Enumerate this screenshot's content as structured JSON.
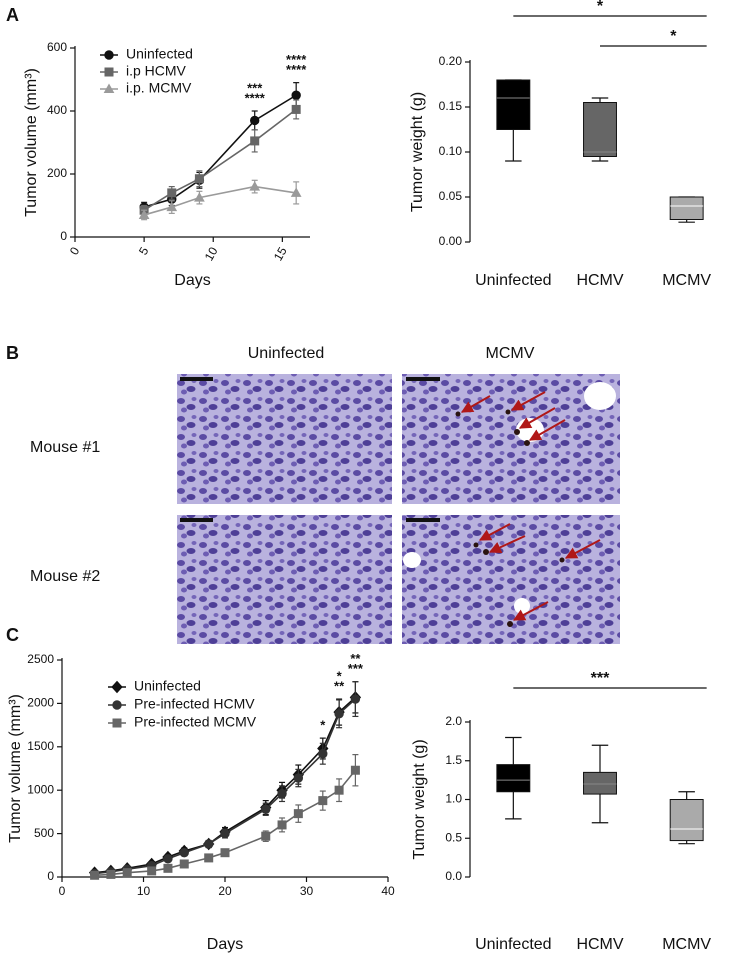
{
  "panels": [
    "A",
    "B",
    "C"
  ],
  "micrographs": {
    "columns": [
      "Uninfected",
      "MCMV"
    ],
    "rows": [
      "Mouse #1",
      "Mouse #2"
    ]
  },
  "chart_data": [
    {
      "type": "line",
      "xlabel": "Days",
      "ylabel": "Tumor volume (mm³)",
      "x": [
        5,
        7,
        9,
        13,
        16
      ],
      "xlim": [
        0,
        17
      ],
      "xticks": [
        0,
        5,
        10,
        15
      ],
      "ylim": [
        0,
        600
      ],
      "yticks": [
        0,
        200,
        400,
        600
      ],
      "series": [
        {
          "name": "Uninfected",
          "color": "#111111",
          "marker": "circle",
          "values": [
            95,
            120,
            180,
            370,
            450
          ],
          "errors": [
            15,
            20,
            25,
            30,
            40
          ]
        },
        {
          "name": "i.p HCMV",
          "color": "#666666",
          "marker": "square",
          "values": [
            85,
            140,
            185,
            305,
            405
          ],
          "errors": [
            15,
            20,
            25,
            35,
            30
          ]
        },
        {
          "name": "i.p. MCMV",
          "color": "#9a9a9a",
          "marker": "triangle",
          "values": [
            70,
            95,
            125,
            160,
            140
          ],
          "errors": [
            15,
            20,
            20,
            20,
            35
          ]
        }
      ],
      "annotations": [
        {
          "x": 13,
          "text": "****",
          "color": "#111111"
        },
        {
          "x": 13,
          "text": "***",
          "color": "#9a9a9a"
        },
        {
          "x": 16,
          "text": "****",
          "color": "#111111"
        },
        {
          "x": 16,
          "text": "****",
          "color": "#9a9a9a"
        }
      ]
    },
    {
      "type": "box",
      "ylabel": "Tumor weight (g)",
      "categories": [
        "Uninfected",
        "HCMV",
        "MCMV"
      ],
      "colors": [
        "#000000",
        "#666666",
        "#aaaaaa"
      ],
      "boxes": [
        {
          "min": 0.09,
          "q1": 0.125,
          "median": 0.16,
          "q3": 0.18,
          "max": 0.18
        },
        {
          "min": 0.09,
          "q1": 0.095,
          "median": 0.1,
          "q3": 0.155,
          "max": 0.16
        },
        {
          "min": 0.022,
          "q1": 0.025,
          "median": 0.04,
          "q3": 0.05,
          "max": 0.05
        }
      ],
      "ylim": [
        0,
        0.2
      ],
      "yticks": [
        {
          "value": 0,
          "label": "0.00"
        },
        {
          "value": 0.05,
          "label": "0.05"
        },
        {
          "value": 0.1,
          "label": "0.10"
        },
        {
          "value": 0.15,
          "label": "0.15"
        },
        {
          "value": 0.2,
          "label": "0.20"
        }
      ],
      "brackets": [
        {
          "from": 0,
          "to": 2,
          "text": "*"
        },
        {
          "from": 1,
          "to": 2,
          "text": "*"
        }
      ]
    },
    {
      "type": "line",
      "xlabel": "Days",
      "ylabel": "Tumor volume (mm³)",
      "x": [
        4,
        6,
        8,
        11,
        13,
        15,
        18,
        20,
        25,
        27,
        29,
        32,
        34,
        36
      ],
      "xlim": [
        0,
        40
      ],
      "xticks": [
        0,
        10,
        20,
        30,
        40
      ],
      "ylim": [
        0,
        2500
      ],
      "yticks": [
        0,
        500,
        1000,
        1500,
        2000,
        2500
      ],
      "series": [
        {
          "name": "Uninfected",
          "color": "#111111",
          "marker": "diamond",
          "values": [
            50,
            70,
            100,
            150,
            230,
            300,
            380,
            520,
            800,
            1000,
            1180,
            1480,
            1900,
            2070
          ],
          "errors": [
            10,
            15,
            20,
            25,
            30,
            35,
            40,
            50,
            80,
            90,
            110,
            120,
            150,
            180
          ]
        },
        {
          "name": "Pre-infected HCMV",
          "color": "#333333",
          "marker": "circle",
          "values": [
            40,
            60,
            90,
            130,
            210,
            280,
            380,
            500,
            780,
            960,
            1140,
            1420,
            1880,
            2050
          ],
          "errors": [
            10,
            15,
            20,
            25,
            30,
            35,
            40,
            50,
            70,
            90,
            100,
            120,
            160,
            200
          ]
        },
        {
          "name": "Pre-infected MCMV",
          "color": "#666666",
          "marker": "square",
          "values": [
            20,
            30,
            50,
            70,
            100,
            150,
            220,
            280,
            470,
            600,
            730,
            880,
            1000,
            1230
          ],
          "errors": [
            10,
            10,
            15,
            20,
            25,
            30,
            35,
            40,
            60,
            80,
            100,
            110,
            130,
            180
          ]
        }
      ],
      "annotations": [
        {
          "x": 32,
          "text": "*",
          "color": "#111111"
        },
        {
          "x": 34,
          "text": "**",
          "color": "#111111"
        },
        {
          "x": 34,
          "text": "*",
          "color": "#111111"
        },
        {
          "x": 36,
          "text": "***",
          "color": "#111111"
        },
        {
          "x": 36,
          "text": "**",
          "color": "#111111"
        }
      ]
    },
    {
      "type": "box",
      "ylabel": "Tumor weight (g)",
      "categories": [
        "Uninfected",
        "HCMV",
        "MCMV"
      ],
      "colors": [
        "#000000",
        "#666666",
        "#aaaaaa"
      ],
      "boxes": [
        {
          "min": 0.75,
          "q1": 1.1,
          "median": 1.25,
          "q3": 1.45,
          "max": 1.8
        },
        {
          "min": 0.7,
          "q1": 1.07,
          "median": 1.2,
          "q3": 1.35,
          "max": 1.7
        },
        {
          "min": 0.43,
          "q1": 0.47,
          "median": 0.62,
          "q3": 1.0,
          "max": 1.1
        }
      ],
      "ylim": [
        0,
        2
      ],
      "yticks": [
        {
          "value": 0,
          "label": "0.0"
        },
        {
          "value": 0.5,
          "label": "0.5"
        },
        {
          "value": 1,
          "label": "1.0"
        },
        {
          "value": 1.5,
          "label": "1.5"
        },
        {
          "value": 2,
          "label": "2.0"
        }
      ],
      "brackets": [
        {
          "from": 0,
          "to": 2,
          "text": "***"
        }
      ]
    }
  ]
}
